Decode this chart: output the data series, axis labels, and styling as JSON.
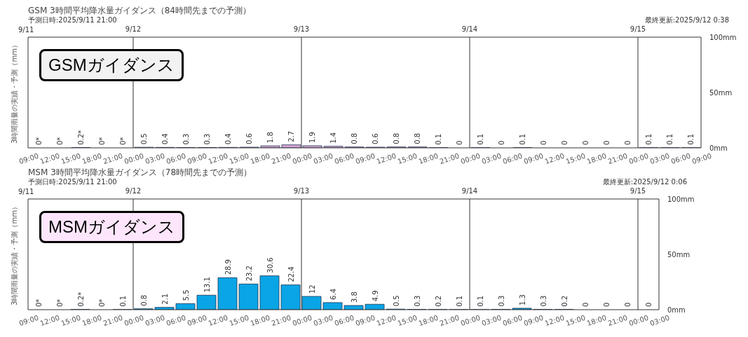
{
  "chart_data": [
    {
      "type": "bar",
      "title": "GSM 3時間平均降水量ガイダンス（84時間先までの予測）",
      "subtitle": "予測日時:2025/9/11 21:00",
      "ylabel": "3時間雨量の実績・予測（mm）",
      "annotations": [
        "最終更新:2025/9/12 0:38",
        "GSMガイダンス",
        "9/11"
      ],
      "x": [
        "2025-09-11T10:30",
        "2025-09-11T13:30",
        "2025-09-11T16:30",
        "2025-09-11T19:30",
        "2025-09-11T22:30",
        "2025-09-12T01:30",
        "2025-09-12T04:30",
        "2025-09-12T07:30",
        "2025-09-12T10:30",
        "2025-09-12T13:30",
        "2025-09-12T16:30",
        "2025-09-12T19:30",
        "2025-09-12T22:30",
        "2025-09-13T01:30",
        "2025-09-13T04:30",
        "2025-09-13T07:30",
        "2025-09-13T10:30",
        "2025-09-13T13:30",
        "2025-09-13T16:30",
        "2025-09-13T19:30",
        "2025-09-13T22:30",
        "2025-09-14T01:30",
        "2025-09-14T04:30",
        "2025-09-14T07:30",
        "2025-09-14T10:30",
        "2025-09-14T13:30",
        "2025-09-14T16:30",
        "2025-09-14T19:30",
        "2025-09-14T22:30",
        "2025-09-15T01:30",
        "2025-09-15T04:30",
        "2025-09-15T07:30"
      ],
      "values": [
        0,
        0,
        0.2,
        0,
        0,
        0.5,
        0.4,
        0.3,
        0.3,
        0.4,
        0.6,
        1.8,
        2.7,
        1.9,
        1.4,
        0.8,
        0.6,
        0.8,
        0.8,
        0.1,
        0,
        0.1,
        0,
        0.1,
        0,
        0,
        0,
        0,
        0,
        0.1,
        0.1,
        0.1
      ],
      "value_labels": [
        "0*",
        "0*",
        "0.2*",
        "0*",
        "0*",
        "0.5",
        "0.4",
        "0.3",
        "0.3",
        "0.4",
        "0.6",
        "1.8",
        "2.7",
        "1.9",
        "1.4",
        "0.8",
        "0.6",
        "0.8",
        "0.8",
        "0.1",
        "0",
        "0.1",
        "0",
        "0.1",
        "0",
        "0",
        "0",
        "0",
        "0",
        "0.1",
        "0.1",
        "0.1"
      ],
      "color": "#d9a6d9",
      "xlim": [
        "2025-09-11T09:00",
        "2025-09-15T09:00"
      ],
      "xticks": [
        {
          "value": "2025-09-11T09:00",
          "label": "09:00"
        },
        {
          "value": "2025-09-11T12:00",
          "label": "12:00"
        },
        {
          "value": "2025-09-11T15:00",
          "label": "15:00"
        },
        {
          "value": "2025-09-11T18:00",
          "label": "18:00"
        },
        {
          "value": "2025-09-11T21:00",
          "label": "21:00"
        },
        {
          "value": "2025-09-12T00:00",
          "label": "00:00"
        },
        {
          "value": "2025-09-12T03:00",
          "label": "03:00"
        },
        {
          "value": "2025-09-12T06:00",
          "label": "06:00"
        },
        {
          "value": "2025-09-12T09:00",
          "label": "09:00"
        },
        {
          "value": "2025-09-12T12:00",
          "label": "12:00"
        },
        {
          "value": "2025-09-12T15:00",
          "label": "15:00"
        },
        {
          "value": "2025-09-12T18:00",
          "label": "18:00"
        },
        {
          "value": "2025-09-12T21:00",
          "label": "21:00"
        },
        {
          "value": "2025-09-13T00:00",
          "label": "00:00"
        },
        {
          "value": "2025-09-13T03:00",
          "label": "03:00"
        },
        {
          "value": "2025-09-13T06:00",
          "label": "06:00"
        },
        {
          "value": "2025-09-13T09:00",
          "label": "09:00"
        },
        {
          "value": "2025-09-13T12:00",
          "label": "12:00"
        },
        {
          "value": "2025-09-13T15:00",
          "label": "15:00"
        },
        {
          "value": "2025-09-13T18:00",
          "label": "18:00"
        },
        {
          "value": "2025-09-13T21:00",
          "label": "21:00"
        },
        {
          "value": "2025-09-14T00:00",
          "label": "00:00"
        },
        {
          "value": "2025-09-14T03:00",
          "label": "03:00"
        },
        {
          "value": "2025-09-14T06:00",
          "label": "06:00"
        },
        {
          "value": "2025-09-14T09:00",
          "label": "09:00"
        },
        {
          "value": "2025-09-14T12:00",
          "label": "12:00"
        },
        {
          "value": "2025-09-14T15:00",
          "label": "15:00"
        },
        {
          "value": "2025-09-14T18:00",
          "label": "18:00"
        },
        {
          "value": "2025-09-14T21:00",
          "label": "21:00"
        },
        {
          "value": "2025-09-15T00:00",
          "label": "00:00"
        },
        {
          "value": "2025-09-15T03:00",
          "label": "03:00"
        },
        {
          "value": "2025-09-15T06:00",
          "label": "06:00"
        },
        {
          "value": "2025-09-15T09:00",
          "label": "09:00"
        }
      ],
      "x2lim": [
        "2025-09-11T09:00",
        "2025-09-15T09:00"
      ],
      "x2ticks": [
        {
          "value": "2025-09-12T00:00",
          "label": "9/12"
        },
        {
          "value": "2025-09-13T00:00",
          "label": "9/13"
        },
        {
          "value": "2025-09-14T00:00",
          "label": "9/14"
        },
        {
          "value": "2025-09-15T00:00",
          "label": "9/15"
        }
      ],
      "ylim": [
        0,
        100
      ],
      "yticks": [
        {
          "value": 0,
          "label": "0mm"
        },
        {
          "value": 50,
          "label": "50mm"
        },
        {
          "value": 100,
          "label": "100mm"
        }
      ],
      "ref_lines": [
        {
          "axis": "x",
          "value": "2025-09-12T00:00"
        },
        {
          "axis": "x",
          "value": "2025-09-13T00:00"
        },
        {
          "axis": "x",
          "value": "2025-09-14T00:00"
        },
        {
          "axis": "x",
          "value": "2025-09-15T00:00"
        }
      ]
    },
    {
      "type": "bar",
      "title": "MSM 3時間平均降水量ガイダンス（78時間先までの予測）",
      "subtitle": "予測日時:2025/9/11 21:00",
      "ylabel": "3時間雨量の実績・予測（mm）",
      "annotations": [
        "最終更新:2025/9/12 0:06",
        "MSMガイダンス",
        "9/11"
      ],
      "x": [
        "2025-09-11T10:30",
        "2025-09-11T13:30",
        "2025-09-11T16:30",
        "2025-09-11T19:30",
        "2025-09-11T22:30",
        "2025-09-12T01:30",
        "2025-09-12T04:30",
        "2025-09-12T07:30",
        "2025-09-12T10:30",
        "2025-09-12T13:30",
        "2025-09-12T16:30",
        "2025-09-12T19:30",
        "2025-09-12T22:30",
        "2025-09-13T01:30",
        "2025-09-13T04:30",
        "2025-09-13T07:30",
        "2025-09-13T10:30",
        "2025-09-13T13:30",
        "2025-09-13T16:30",
        "2025-09-13T19:30",
        "2025-09-13T22:30",
        "2025-09-14T01:30",
        "2025-09-14T04:30",
        "2025-09-14T07:30",
        "2025-09-14T10:30",
        "2025-09-14T13:30",
        "2025-09-14T16:30",
        "2025-09-14T19:30",
        "2025-09-14T22:30",
        "2025-09-15T01:30"
      ],
      "values": [
        0,
        0,
        0.2,
        0,
        0.1,
        0.8,
        2.1,
        5.5,
        13.1,
        28.9,
        23.2,
        30.6,
        22.4,
        12,
        6.4,
        3.8,
        4.9,
        0.5,
        0.3,
        0.2,
        0.1,
        0.1,
        0.3,
        1.3,
        0.3,
        0.2,
        0,
        0,
        0,
        0
      ],
      "value_labels": [
        "0*",
        "0*",
        "0.2*",
        "0*",
        "0.1",
        "0.8",
        "2.1",
        "5.5",
        "13.1",
        "28.9",
        "23.2",
        "30.6",
        "22.4",
        "12",
        "6.4",
        "3.8",
        "4.9",
        "0.5",
        "0.3",
        "0.2",
        "0.1",
        "0.1",
        "0.3",
        "1.3",
        "0.3",
        "0.2",
        "0",
        "0",
        "0",
        "0"
      ],
      "color": "#0aa5e6",
      "xlim": [
        "2025-09-11T09:00",
        "2025-09-15T03:00"
      ],
      "xticks": [
        {
          "value": "2025-09-11T09:00",
          "label": "09:00"
        },
        {
          "value": "2025-09-11T12:00",
          "label": "12:00"
        },
        {
          "value": "2025-09-11T15:00",
          "label": "15:00"
        },
        {
          "value": "2025-09-11T18:00",
          "label": "18:00"
        },
        {
          "value": "2025-09-11T21:00",
          "label": "21:00"
        },
        {
          "value": "2025-09-12T00:00",
          "label": "00:00"
        },
        {
          "value": "2025-09-12T03:00",
          "label": "03:00"
        },
        {
          "value": "2025-09-12T06:00",
          "label": "06:00"
        },
        {
          "value": "2025-09-12T09:00",
          "label": "09:00"
        },
        {
          "value": "2025-09-12T12:00",
          "label": "12:00"
        },
        {
          "value": "2025-09-12T15:00",
          "label": "15:00"
        },
        {
          "value": "2025-09-12T18:00",
          "label": "18:00"
        },
        {
          "value": "2025-09-12T21:00",
          "label": "21:00"
        },
        {
          "value": "2025-09-13T00:00",
          "label": "00:00"
        },
        {
          "value": "2025-09-13T03:00",
          "label": "03:00"
        },
        {
          "value": "2025-09-13T06:00",
          "label": "06:00"
        },
        {
          "value": "2025-09-13T09:00",
          "label": "09:00"
        },
        {
          "value": "2025-09-13T12:00",
          "label": "12:00"
        },
        {
          "value": "2025-09-13T15:00",
          "label": "15:00"
        },
        {
          "value": "2025-09-13T18:00",
          "label": "18:00"
        },
        {
          "value": "2025-09-13T21:00",
          "label": "21:00"
        },
        {
          "value": "2025-09-14T00:00",
          "label": "00:00"
        },
        {
          "value": "2025-09-14T03:00",
          "label": "03:00"
        },
        {
          "value": "2025-09-14T06:00",
          "label": "06:00"
        },
        {
          "value": "2025-09-14T09:00",
          "label": "09:00"
        },
        {
          "value": "2025-09-14T12:00",
          "label": "12:00"
        },
        {
          "value": "2025-09-14T15:00",
          "label": "15:00"
        },
        {
          "value": "2025-09-14T18:00",
          "label": "18:00"
        },
        {
          "value": "2025-09-14T21:00",
          "label": "21:00"
        },
        {
          "value": "2025-09-15T00:00",
          "label": "00:00"
        },
        {
          "value": "2025-09-15T03:00",
          "label": "03:00"
        }
      ],
      "x2lim": [
        "2025-09-11T09:00",
        "2025-09-15T03:00"
      ],
      "x2ticks": [
        {
          "value": "2025-09-12T00:00",
          "label": "9/12"
        },
        {
          "value": "2025-09-13T00:00",
          "label": "9/13"
        },
        {
          "value": "2025-09-14T00:00",
          "label": "9/14"
        },
        {
          "value": "2025-09-15T00:00",
          "label": "9/15"
        }
      ],
      "ylim": [
        0,
        100
      ],
      "yticks": [
        {
          "value": 0,
          "label": "0mm"
        },
        {
          "value": 50,
          "label": "50mm"
        },
        {
          "value": 100,
          "label": "100mm"
        }
      ],
      "ref_lines": [
        {
          "axis": "x",
          "value": "2025-09-12T00:00"
        },
        {
          "axis": "x",
          "value": "2025-09-13T00:00"
        },
        {
          "axis": "x",
          "value": "2025-09-14T00:00"
        },
        {
          "axis": "x",
          "value": "2025-09-15T00:00"
        }
      ]
    }
  ]
}
